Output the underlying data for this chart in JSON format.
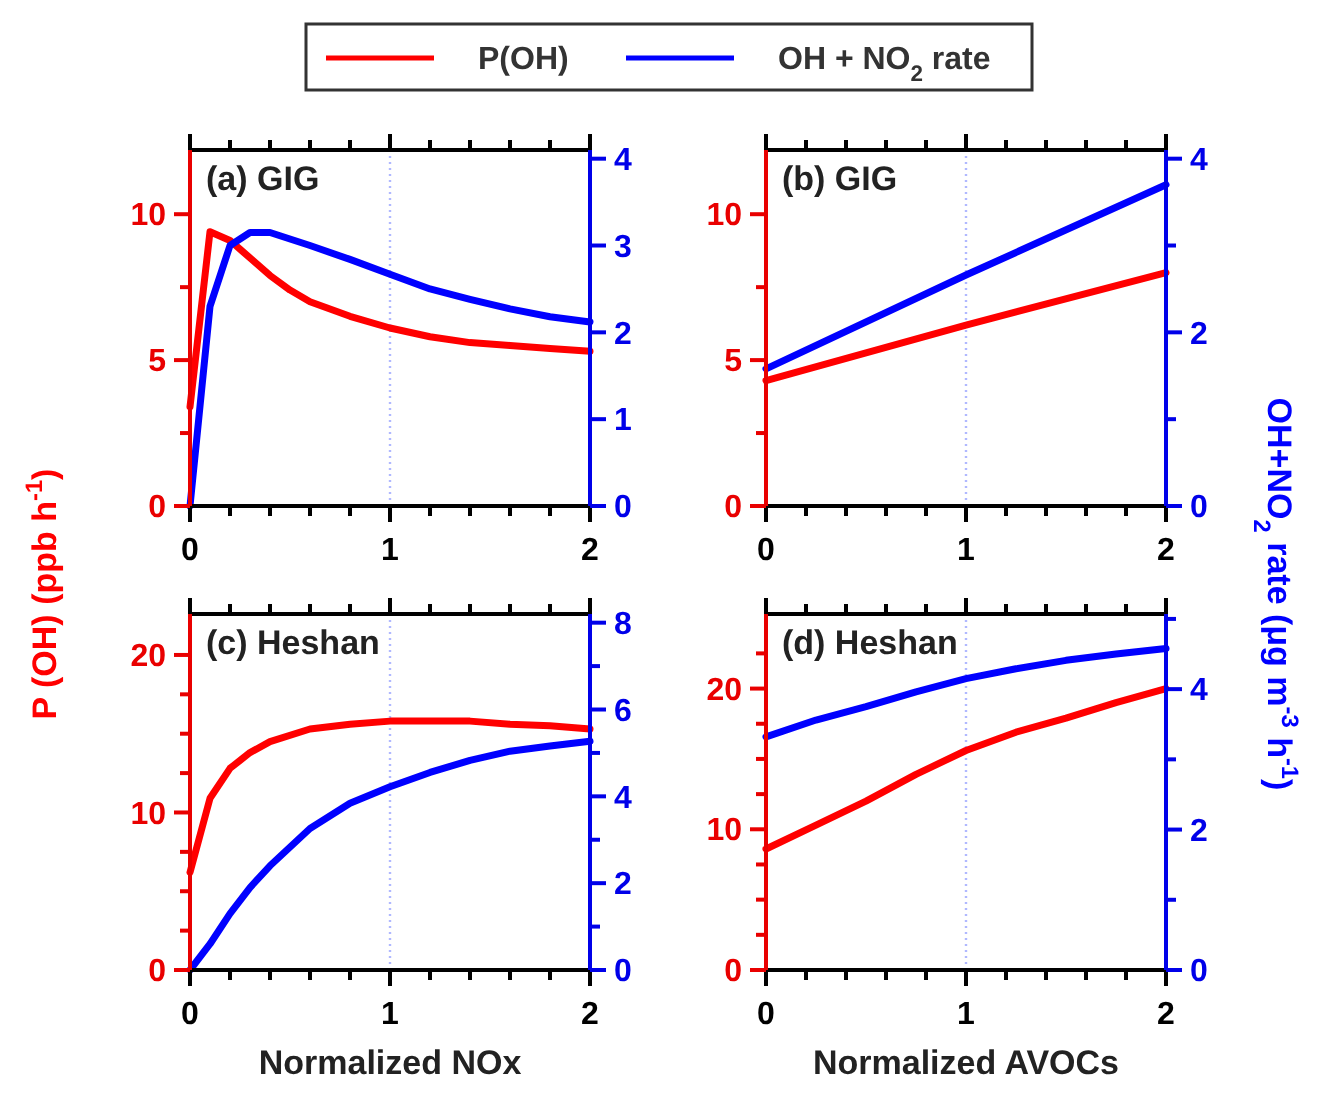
{
  "chart_data": [
    {
      "type": "line",
      "title": "(a) GIG",
      "legend": "top",
      "ref_lines": [
        {
          "axis": "x",
          "value": 1,
          "color": "#b0b8ff",
          "line_style": "dotted"
        }
      ],
      "ylabel": "P (OH) (ppb h$^{-1}$)",
      "xlim": [
        0,
        2
      ],
      "xticks": [
        0,
        {
          "value": 0.2,
          "label": null
        },
        {
          "value": 0.4,
          "label": null
        },
        {
          "value": 0.6,
          "label": null
        },
        {
          "value": 0.8,
          "label": null
        },
        1,
        {
          "value": 1.2,
          "label": null
        },
        {
          "value": 1.4,
          "label": null
        },
        {
          "value": 1.6,
          "label": null
        },
        {
          "value": 1.8,
          "label": null
        },
        2
      ],
      "ylim": [
        0,
        12.2
      ],
      "yticks": [
        0,
        {
          "value": 2.5,
          "label": null
        },
        5,
        {
          "value": 7.5,
          "label": null
        },
        10
      ],
      "y2lim": [
        0,
        4.1
      ],
      "y2ticks": [
        0,
        1,
        2,
        3,
        4
      ],
      "series": [
        {
          "name": "P(OH)",
          "color": "#ff0000",
          "x": [
            0,
            0.1,
            0.2,
            0.3,
            0.4,
            0.5,
            0.6,
            0.8,
            1,
            1.2,
            1.4,
            1.6,
            1.8,
            2
          ],
          "values": [
            3.4,
            9.4,
            9.1,
            8.5,
            7.9,
            7.4,
            7.0,
            6.5,
            6.1,
            5.8,
            5.6,
            5.5,
            5.4,
            5.3
          ]
        },
        {
          "name": "OH + NO$_{2}$ rate",
          "color": "#0000ff",
          "axis": "y2",
          "x": [
            0,
            0.1,
            0.2,
            0.3,
            0.4,
            0.6,
            0.8,
            1,
            1.2,
            1.4,
            1.6,
            1.8,
            2
          ],
          "values": [
            0,
            2.3,
            3.0,
            3.15,
            3.15,
            3.0,
            2.84,
            2.67,
            2.5,
            2.38,
            2.27,
            2.18,
            2.12
          ]
        }
      ]
    },
    {
      "type": "line",
      "title": "(b) GIG",
      "ref_lines": [
        {
          "axis": "x",
          "value": 1,
          "color": "#b0b8ff",
          "line_style": "dotted"
        }
      ],
      "y2label": "OH+NO$_{2}$ rate (μg m$^{-3}$ h$^{-1}$)",
      "xlim": [
        0,
        2
      ],
      "xticks": [
        0,
        {
          "value": 0.2,
          "label": null
        },
        {
          "value": 0.4,
          "label": null
        },
        {
          "value": 0.6,
          "label": null
        },
        {
          "value": 0.8,
          "label": null
        },
        1,
        {
          "value": 1.2,
          "label": null
        },
        {
          "value": 1.4,
          "label": null
        },
        {
          "value": 1.6,
          "label": null
        },
        {
          "value": 1.8,
          "label": null
        },
        2
      ],
      "ylim": [
        0,
        12.2
      ],
      "yticks": [
        0,
        {
          "value": 2.5,
          "label": null
        },
        5,
        {
          "value": 7.5,
          "label": null
        },
        10
      ],
      "y2lim": [
        0,
        4.1
      ],
      "y2ticks": [
        0,
        {
          "value": 1,
          "label": null
        },
        2,
        {
          "value": 3,
          "label": null
        },
        4
      ],
      "series": [
        {
          "color": "#ff0000",
          "x": [
            0,
            1,
            2
          ],
          "values": [
            4.3,
            6.2,
            8.0
          ]
        },
        {
          "color": "#0000ff",
          "axis": "y2",
          "x": [
            0,
            1,
            2
          ],
          "values": [
            1.58,
            2.66,
            3.7
          ]
        }
      ]
    },
    {
      "type": "line",
      "title": "(c) Heshan",
      "ref_lines": [
        {
          "axis": "x",
          "value": 1,
          "color": "#b0b8ff",
          "line_style": "dotted"
        }
      ],
      "xlabel": "Normalized NOx",
      "xlim": [
        0,
        2
      ],
      "xticks": [
        0,
        {
          "value": 0.2,
          "label": null
        },
        {
          "value": 0.4,
          "label": null
        },
        {
          "value": 0.6,
          "label": null
        },
        {
          "value": 0.8,
          "label": null
        },
        1,
        {
          "value": 1.2,
          "label": null
        },
        {
          "value": 1.4,
          "label": null
        },
        {
          "value": 1.6,
          "label": null
        },
        {
          "value": 1.8,
          "label": null
        },
        2
      ],
      "ylim": [
        0,
        22.6
      ],
      "yticks": [
        0,
        {
          "value": 2.5,
          "label": null
        },
        {
          "value": 5,
          "label": null
        },
        {
          "value": 7.5,
          "label": null
        },
        10,
        {
          "value": 12.5,
          "label": null
        },
        {
          "value": 15,
          "label": null
        },
        {
          "value": 17.5,
          "label": null
        },
        20
      ],
      "y2lim": [
        0,
        8.2
      ],
      "y2ticks": [
        0,
        {
          "value": 1,
          "label": null
        },
        2,
        {
          "value": 3,
          "label": null
        },
        4,
        {
          "value": 5,
          "label": null
        },
        6,
        {
          "value": 7,
          "label": null
        },
        8
      ],
      "series": [
        {
          "color": "#ff0000",
          "x": [
            0,
            0.1,
            0.2,
            0.3,
            0.4,
            0.6,
            0.8,
            1,
            1.2,
            1.4,
            1.6,
            1.8,
            2
          ],
          "values": [
            6.2,
            10.9,
            12.8,
            13.8,
            14.5,
            15.3,
            15.6,
            15.8,
            15.8,
            15.8,
            15.6,
            15.5,
            15.3
          ]
        },
        {
          "color": "#0000ff",
          "axis": "y2",
          "x": [
            0,
            0.1,
            0.2,
            0.3,
            0.4,
            0.6,
            0.8,
            1,
            1.2,
            1.4,
            1.6,
            1.8,
            2
          ],
          "values": [
            0,
            0.6,
            1.3,
            1.9,
            2.4,
            3.26,
            3.84,
            4.22,
            4.55,
            4.83,
            5.04,
            5.16,
            5.27
          ]
        }
      ]
    },
    {
      "type": "line",
      "title": "(d) Heshan",
      "ref_lines": [
        {
          "axis": "x",
          "value": 1,
          "color": "#b0b8ff",
          "line_style": "dotted"
        }
      ],
      "xlabel": "Normalized AVOCs",
      "xlim": [
        0,
        2
      ],
      "xticks": [
        0,
        {
          "value": 0.2,
          "label": null
        },
        {
          "value": 0.4,
          "label": null
        },
        {
          "value": 0.6,
          "label": null
        },
        {
          "value": 0.8,
          "label": null
        },
        1,
        {
          "value": 1.2,
          "label": null
        },
        {
          "value": 1.4,
          "label": null
        },
        {
          "value": 1.6,
          "label": null
        },
        {
          "value": 1.8,
          "label": null
        },
        2
      ],
      "ylim": [
        0,
        25.3
      ],
      "yticks": [
        0,
        {
          "value": 2.5,
          "label": null
        },
        {
          "value": 5,
          "label": null
        },
        {
          "value": 7.5,
          "label": null
        },
        10,
        {
          "value": 12.5,
          "label": null
        },
        {
          "value": 15,
          "label": null
        },
        {
          "value": 17.5,
          "label": null
        },
        20,
        {
          "value": 22.5,
          "label": null
        }
      ],
      "y2lim": [
        0,
        5.07
      ],
      "y2ticks": [
        0,
        {
          "value": 1,
          "label": null
        },
        2,
        {
          "value": 3,
          "label": null
        },
        4,
        {
          "value": 5,
          "label": null
        }
      ],
      "series": [
        {
          "color": "#ff0000",
          "x": [
            0,
            0.25,
            0.5,
            0.75,
            1,
            1.25,
            1.5,
            1.75,
            2
          ],
          "values": [
            8.6,
            10.3,
            12.0,
            13.9,
            15.6,
            16.9,
            17.9,
            19.0,
            20.0
          ]
        },
        {
          "color": "#0000ff",
          "axis": "y2",
          "x": [
            0,
            0.25,
            0.5,
            0.75,
            1,
            1.25,
            1.5,
            1.75,
            2
          ],
          "values": [
            3.32,
            3.56,
            3.75,
            3.96,
            4.15,
            4.29,
            4.41,
            4.5,
            4.58
          ]
        }
      ]
    }
  ]
}
